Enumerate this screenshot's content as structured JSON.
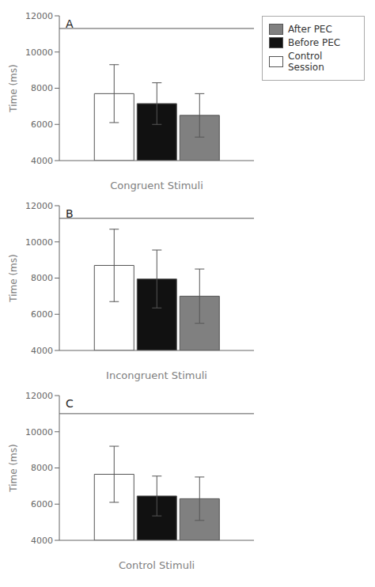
{
  "chart_data": [
    {
      "type": "bar",
      "annotations": [
        "A"
      ],
      "xlabel": "Congruent Stimuli",
      "ylabel": "Time (ms)",
      "categories": [
        null
      ],
      "series": [
        {
          "name": "Control Session",
          "color": "#ffffff",
          "values": [
            7700
          ],
          "err_low": [
            1600
          ],
          "err_high": [
            1600
          ]
        },
        {
          "name": "Before PEC",
          "color": "#111111",
          "values": [
            7150
          ],
          "err_low": [
            1150
          ],
          "err_high": [
            1150
          ]
        },
        {
          "name": "After PEC",
          "color": "#808080",
          "values": [
            6500
          ],
          "err_low": [
            1200
          ],
          "err_high": [
            1200
          ]
        }
      ],
      "significance_line": 11300,
      "ylim": [
        4000,
        12000
      ],
      "yticks": [
        4000,
        6000,
        8000,
        10000,
        12000
      ],
      "grid": false,
      "legend": "upper right"
    },
    {
      "type": "bar",
      "annotations": [
        "B"
      ],
      "xlabel": "Incongruent Stimuli",
      "ylabel": "Time (ms)",
      "categories": [
        null
      ],
      "series": [
        {
          "name": "Control Session",
          "color": "#ffffff",
          "values": [
            8700
          ],
          "err_low": [
            2000
          ],
          "err_high": [
            2000
          ]
        },
        {
          "name": "Before PEC",
          "color": "#111111",
          "values": [
            7950
          ],
          "err_low": [
            1600
          ],
          "err_high": [
            1600
          ]
        },
        {
          "name": "After PEC",
          "color": "#808080",
          "values": [
            7000
          ],
          "err_low": [
            1500
          ],
          "err_high": [
            1500
          ]
        }
      ],
      "significance_line": 11300,
      "ylim": [
        4000,
        12000
      ],
      "yticks": [
        4000,
        6000,
        8000,
        10000,
        12000
      ],
      "grid": false
    },
    {
      "type": "bar",
      "annotations": [
        "C"
      ],
      "xlabel": "Control Stimuli",
      "ylabel": "Time (ms)",
      "categories": [
        null
      ],
      "series": [
        {
          "name": "Control Session",
          "color": "#ffffff",
          "values": [
            7650
          ],
          "err_low": [
            1550
          ],
          "err_high": [
            1550
          ]
        },
        {
          "name": "Before PEC",
          "color": "#111111",
          "values": [
            6450
          ],
          "err_low": [
            1100
          ],
          "err_high": [
            1100
          ]
        },
        {
          "name": "After PEC",
          "color": "#808080",
          "values": [
            6300
          ],
          "err_low": [
            1200
          ],
          "err_high": [
            1200
          ]
        }
      ],
      "significance_line": 11000,
      "ylim": [
        4000,
        12000
      ],
      "yticks": [
        4000,
        6000,
        8000,
        10000,
        12000
      ],
      "grid": false
    }
  ]
}
